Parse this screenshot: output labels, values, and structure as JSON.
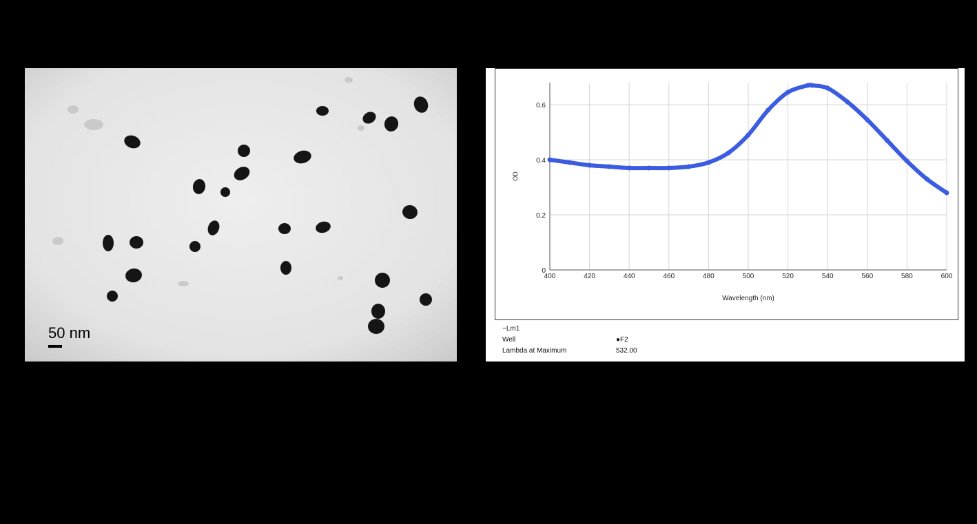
{
  "micrograph": {
    "scale_label": "50 nm",
    "background_color": "#e6e6e6",
    "particle_color": "#151515"
  },
  "chart_data": {
    "type": "line",
    "title": "",
    "xlabel": "Wavelength (nm)",
    "ylabel": "OD",
    "xlim": [
      400,
      600
    ],
    "ylim": [
      0,
      0.68
    ],
    "x_ticks": [
      400,
      420,
      440,
      460,
      480,
      500,
      520,
      540,
      560,
      580,
      600
    ],
    "y_ticks": [
      0,
      0.2,
      0.4,
      0.6
    ],
    "y_tick_labels": [
      "0",
      "0.2",
      "0.4",
      "0.6"
    ],
    "grid": true,
    "series_color": "#3b5ce0",
    "series": [
      {
        "name": "Lm1",
        "x": [
          400,
          410,
          420,
          430,
          440,
          450,
          460,
          470,
          480,
          490,
          500,
          510,
          520,
          530,
          532,
          540,
          550,
          560,
          570,
          580,
          590,
          600
        ],
        "values": [
          0.4,
          0.39,
          0.38,
          0.375,
          0.37,
          0.37,
          0.37,
          0.375,
          0.39,
          0.425,
          0.49,
          0.58,
          0.645,
          0.67,
          0.67,
          0.66,
          0.61,
          0.545,
          0.47,
          0.395,
          0.33,
          0.28
        ]
      }
    ],
    "legend": {
      "series_label": "−Lm1",
      "well_label": "Well",
      "well_value": "●F2",
      "lambda_label": "Lambda at Maximum",
      "lambda_value": "532.00"
    }
  }
}
